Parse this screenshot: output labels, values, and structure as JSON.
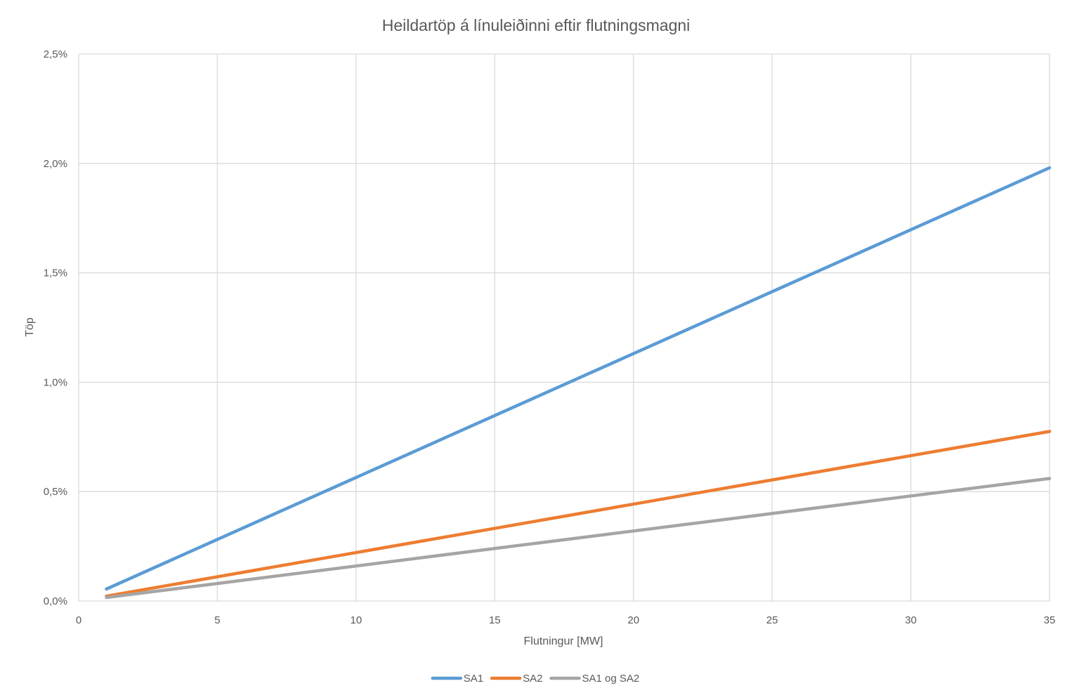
{
  "chart_data": {
    "type": "line",
    "title": "Heildartöp á línuleiðinni eftir flutningsmagni",
    "xlabel": "Flutningur [MW]",
    "ylabel": "Töp",
    "xlim": [
      0,
      35
    ],
    "ylim": [
      0,
      0.025
    ],
    "x_ticks": [
      0,
      5,
      10,
      15,
      20,
      25,
      30,
      35
    ],
    "x_tick_labels": [
      "0",
      "5",
      "10",
      "15",
      "20",
      "25",
      "30",
      "35"
    ],
    "y_ticks": [
      0,
      0.005,
      0.01,
      0.015,
      0.02,
      0.025
    ],
    "y_tick_labels": [
      "0,0%",
      "0,5%",
      "1,0%",
      "1,5%",
      "2,0%",
      "2,5%"
    ],
    "grid": true,
    "legend_position": "bottom",
    "series": [
      {
        "name": "SA1",
        "color": "#5b9bd5",
        "x": [
          1,
          35
        ],
        "y": [
          0.00055,
          0.0198
        ]
      },
      {
        "name": "SA2",
        "color": "#ed7d31",
        "x": [
          1,
          35
        ],
        "y": [
          0.00022,
          0.00775
        ]
      },
      {
        "name": "SA1 og SA2",
        "color": "#a5a5a5",
        "x": [
          1,
          35
        ],
        "y": [
          0.00016,
          0.0056
        ]
      }
    ]
  }
}
